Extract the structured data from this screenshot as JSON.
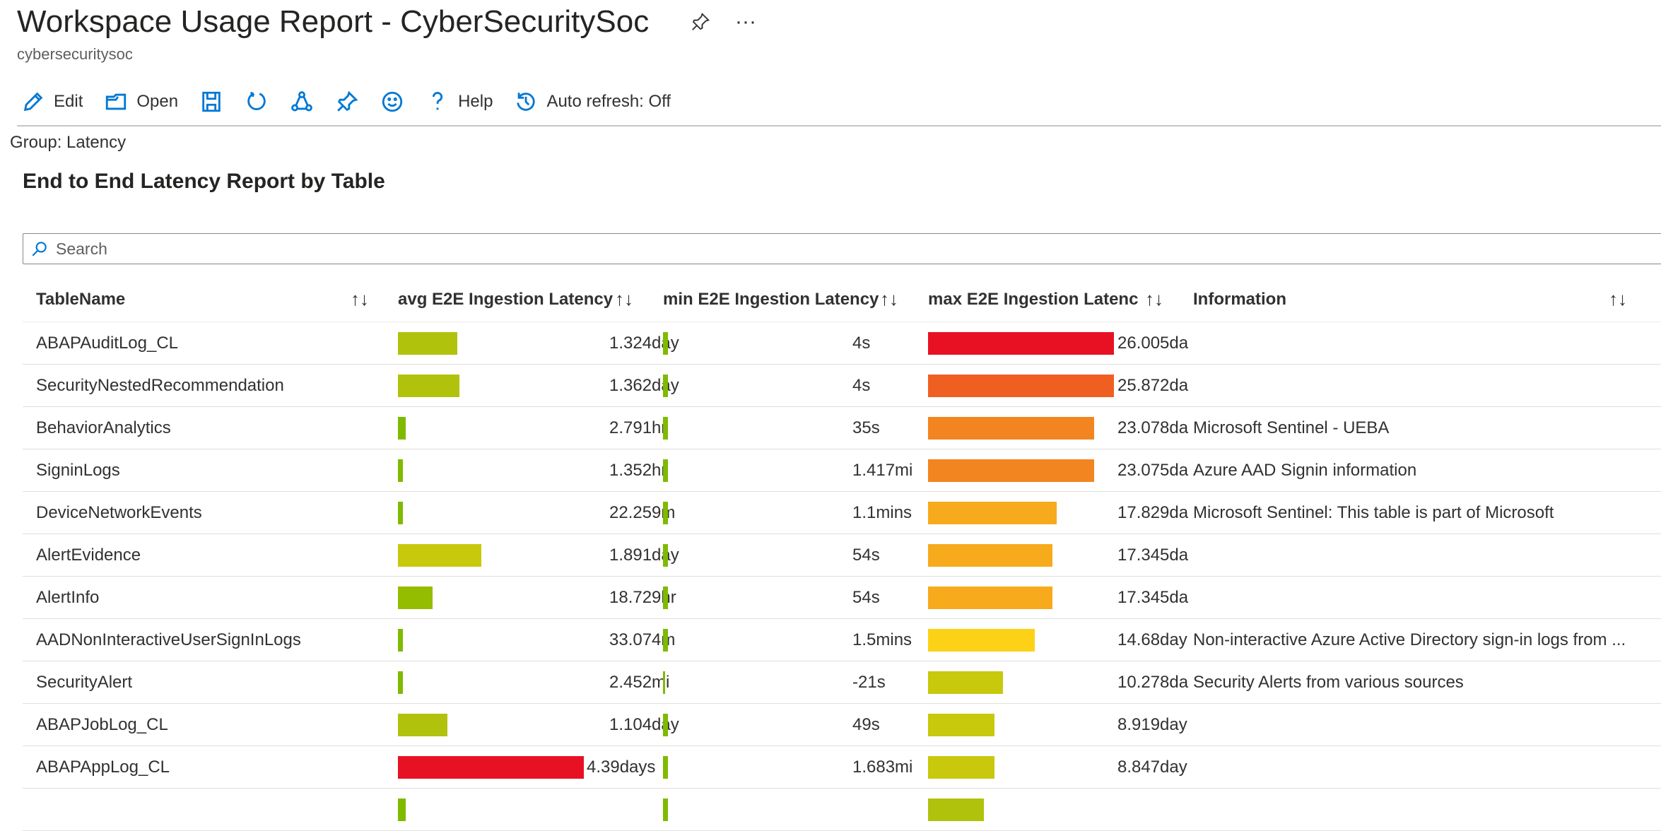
{
  "header": {
    "title": "Workspace Usage Report - CyberSecuritySoc",
    "subtitle": "cybersecuritysoc",
    "more": "···"
  },
  "toolbar": {
    "edit": "Edit",
    "open": "Open",
    "help": "Help",
    "auto_refresh": "Auto refresh: Off"
  },
  "group_label": "Group: Latency",
  "section_title": "End to End Latency Report by Table",
  "search": {
    "placeholder": "Search",
    "value": ""
  },
  "columns": [
    "TableName",
    "avg E2E Ingestion Latency",
    "min E2E Ingestion Latency",
    "max E2E Ingestion Latenc",
    "Information"
  ],
  "sort_icon": "↑↓",
  "rows": [
    {
      "name": "ABAPAuditLog_CL",
      "avg": "1.324day",
      "avg_fill": 0.318,
      "avg_color": "#b0c20c",
      "min": "4s",
      "min_color": "#7fba00",
      "max": "26.005da",
      "max_fill": 1,
      "max_color": "#e81123",
      "info": ""
    },
    {
      "name": "SecurityNestedRecommendation",
      "avg": "1.362day",
      "avg_fill": 0.33,
      "avg_color": "#b0c20c",
      "min": "4s",
      "min_color": "#7fba00",
      "max": "25.872da",
      "max_fill": 1,
      "max_color": "#f05f22",
      "info": ""
    },
    {
      "name": "BehaviorAnalytics",
      "avg": "2.791hr",
      "avg_fill": 0.04,
      "avg_color": "#7fba00",
      "min": "35s",
      "min_color": "#7fba00",
      "max": "23.078da",
      "max_fill": 0.892,
      "max_color": "#f38520",
      "info": "Microsoft Sentinel - UEBA"
    },
    {
      "name": "SigninLogs",
      "avg": "1.352hr",
      "avg_fill": 0.028,
      "avg_color": "#7fba00",
      "min": "1.417mi",
      "min_color": "#7fba00",
      "max": "23.075da",
      "max_fill": 0.892,
      "max_color": "#f38520",
      "info": "Azure AAD Signin information"
    },
    {
      "name": "DeviceNetworkEvents",
      "avg": "22.259m",
      "avg_fill": 0.023,
      "avg_color": "#7fba00",
      "min": "1.1mins",
      "min_color": "#7fba00",
      "max": "17.829da",
      "max_fill": 0.693,
      "max_color": "#f6aa1c",
      "info": "Microsoft Sentinel: This table is part of Microsoft"
    },
    {
      "name": "AlertEvidence",
      "avg": "1.891day",
      "avg_fill": 0.449,
      "avg_color": "#c8c80c",
      "min": "54s",
      "min_color": "#7fba00",
      "max": "17.345da",
      "max_fill": 0.67,
      "max_color": "#f6aa1c",
      "info": ""
    },
    {
      "name": "AlertInfo",
      "avg": "18.729hr",
      "avg_fill": 0.188,
      "avg_color": "#95bd00",
      "min": "54s",
      "min_color": "#7fba00",
      "max": "17.345da",
      "max_fill": 0.67,
      "max_color": "#f6aa1c",
      "info": ""
    },
    {
      "name": "AADNonInteractiveUserSignInLogs",
      "avg": "33.074m",
      "avg_fill": 0.023,
      "avg_color": "#7fba00",
      "min": "1.5mins",
      "min_color": "#7fba00",
      "max": "14.68day",
      "max_fill": 0.574,
      "max_color": "#fcd116",
      "info": "Non-interactive Azure Active Directory sign-in logs from ..."
    },
    {
      "name": "SecurityAlert",
      "avg": "2.452mi",
      "avg_fill": 0.023,
      "avg_color": "#7fba00",
      "min": "-21s",
      "min_color": "#7fba00",
      "max": "10.278da",
      "max_fill": 0.403,
      "max_color": "#c8c80c",
      "info": "Security Alerts from various sources"
    },
    {
      "name": "ABAPJobLog_CL",
      "avg": "1.104day",
      "avg_fill": 0.267,
      "avg_color": "#b0c20c",
      "min": "49s",
      "min_color": "#7fba00",
      "max": "8.919day",
      "max_fill": 0.358,
      "max_color": "#c8c80c",
      "info": ""
    },
    {
      "name": "ABAPAppLog_CL",
      "avg": "4.39days",
      "avg_fill": 1,
      "avg_color": "#e81123",
      "min": "1.683mi",
      "min_color": "#7fba00",
      "max": "8.847day",
      "max_fill": 0.358,
      "max_color": "#c8c80c",
      "info": ""
    },
    {
      "name": "",
      "avg": "",
      "avg_fill": 0.04,
      "avg_color": "#7fba00",
      "min": "",
      "min_color": "#7fba00",
      "max": "",
      "max_fill": 0.3,
      "max_color": "#b0c20c",
      "info": ""
    }
  ]
}
